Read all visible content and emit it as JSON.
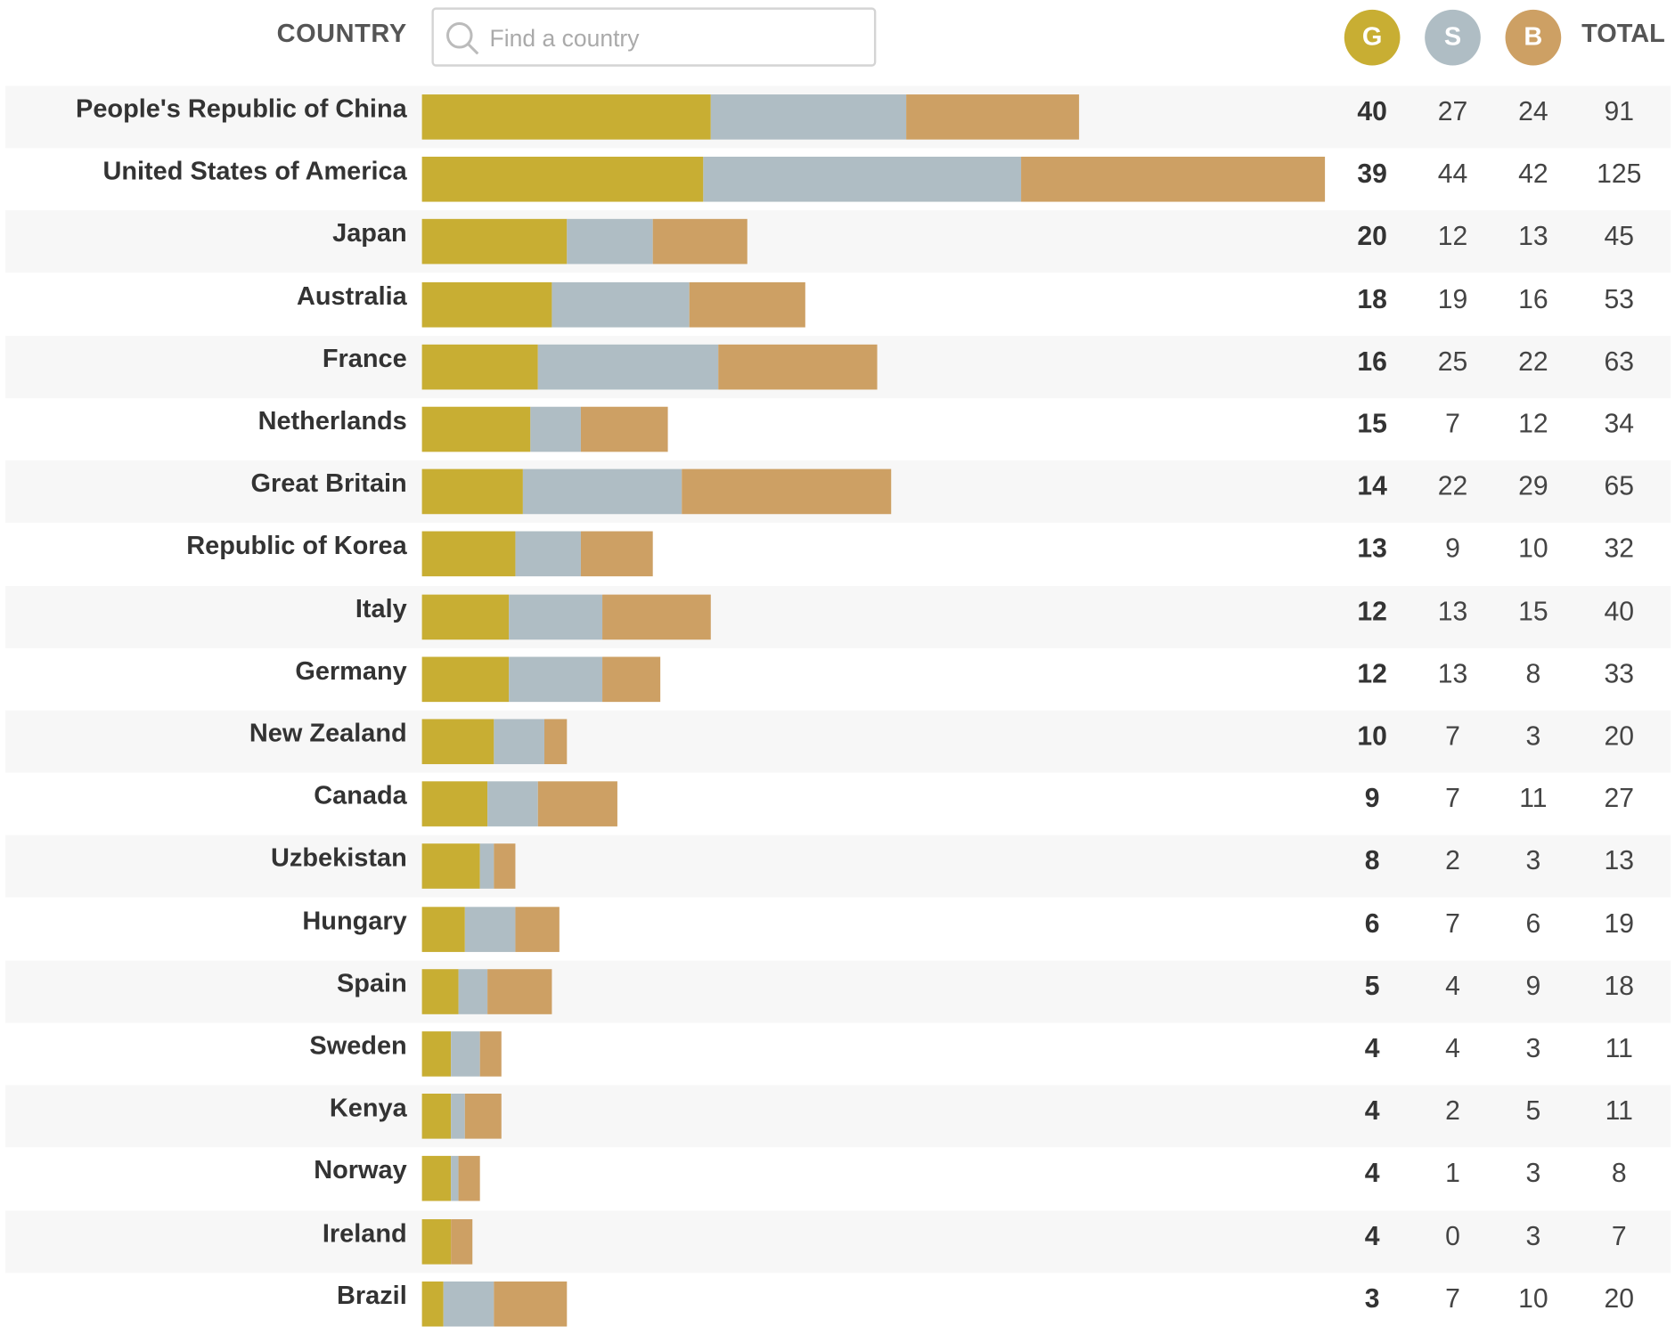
{
  "header": {
    "country_label": "COUNTRY",
    "search_placeholder": "Find a country",
    "gold": "G",
    "silver": "S",
    "bronze": "B",
    "total": "TOTAL"
  },
  "colors": {
    "gold": "#c8ae33",
    "silver": "#afbdc4",
    "bronze": "#cda064"
  },
  "chart_data": {
    "type": "bar",
    "orientation": "horizontal-stacked",
    "xlim": [
      0,
      125
    ],
    "categories": [
      "People's Republic of China",
      "United States of America",
      "Japan",
      "Australia",
      "France",
      "Netherlands",
      "Great Britain",
      "Republic of Korea",
      "Italy",
      "Germany",
      "New Zealand",
      "Canada",
      "Uzbekistan",
      "Hungary",
      "Spain",
      "Sweden",
      "Kenya",
      "Norway",
      "Ireland",
      "Brazil"
    ],
    "series": [
      {
        "name": "G",
        "values": [
          40,
          39,
          20,
          18,
          16,
          15,
          14,
          13,
          12,
          12,
          10,
          9,
          8,
          6,
          5,
          4,
          4,
          4,
          4,
          3
        ]
      },
      {
        "name": "S",
        "values": [
          27,
          44,
          12,
          19,
          25,
          7,
          22,
          9,
          13,
          13,
          7,
          7,
          2,
          7,
          4,
          4,
          2,
          1,
          0,
          7
        ]
      },
      {
        "name": "B",
        "values": [
          24,
          42,
          13,
          16,
          22,
          12,
          29,
          10,
          15,
          8,
          3,
          11,
          3,
          6,
          9,
          3,
          5,
          3,
          3,
          10
        ]
      }
    ],
    "totals": [
      91,
      125,
      45,
      53,
      63,
      34,
      65,
      32,
      40,
      33,
      20,
      27,
      13,
      19,
      18,
      11,
      11,
      8,
      7,
      20
    ]
  }
}
